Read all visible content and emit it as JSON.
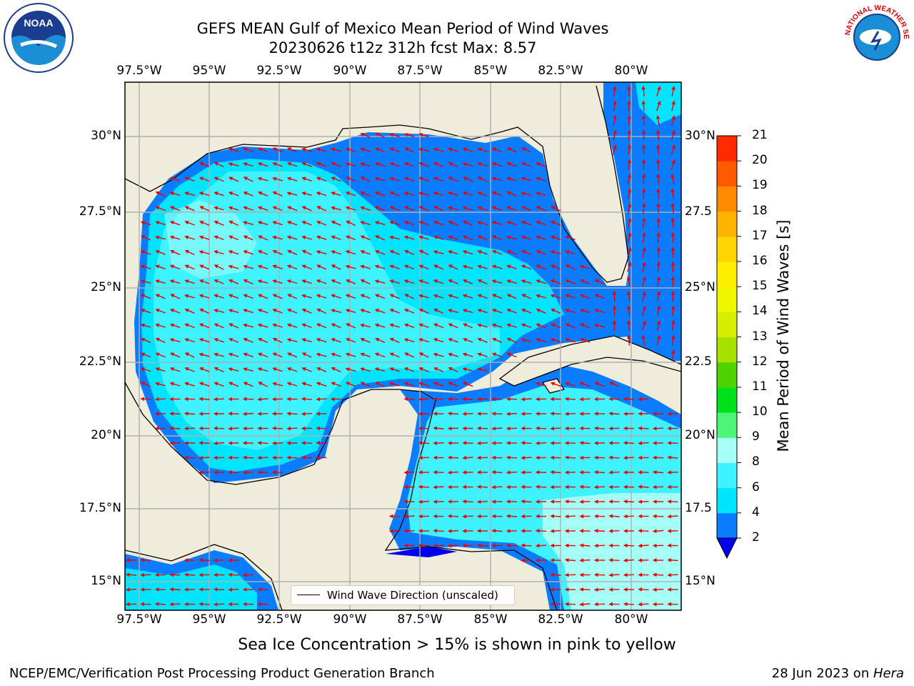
{
  "title": {
    "line1": "GEFS MEAN Gulf of Mexico Mean Period of Wind Waves",
    "line2": "20230626 t12z 312h fcst   Max: 8.57"
  },
  "logos": {
    "left_text": "NOAA",
    "right_text": "NATIONAL WEATHER SERVICE"
  },
  "axes": {
    "lon_ticks": [
      "97.5°W",
      "95°W",
      "92.5°W",
      "90°W",
      "87.5°W",
      "85°W",
      "82.5°W",
      "80°W"
    ],
    "lat_ticks": [
      "30°N",
      "27.5°N",
      "25°N",
      "22.5°N",
      "20°N",
      "17.5°N",
      "15°N"
    ],
    "lat_ticks_right": [
      "30°N",
      "27.5",
      "25°N",
      "22.5",
      "20°N",
      "17.5",
      "15°N"
    ]
  },
  "colorbar": {
    "label": "Mean Period of Wind Waves [s]",
    "ticks": [
      "2",
      "4",
      "6",
      "8",
      "9",
      "10",
      "11",
      "12",
      "13",
      "14",
      "15",
      "16",
      "17",
      "18",
      "19",
      "20",
      "21"
    ],
    "colors": [
      "#0a7cff",
      "#00e5ff",
      "#3ff2ff",
      "#a6fff7",
      "#4cf57a",
      "#00e11c",
      "#4fd300",
      "#a8e000",
      "#d6ef00",
      "#f0f500",
      "#ffee00",
      "#ffd500",
      "#ffb300",
      "#ff8a00",
      "#ff5a00",
      "#ff2a00"
    ],
    "extend_color": "#0000ee"
  },
  "legend": {
    "label": "Wind Wave Direction (unscaled)"
  },
  "caption": "Sea Ice Concentration > 15% is shown in pink to yellow",
  "footer": {
    "left": "NCEP/EMC/Verification Post Processing Product Generation Branch",
    "right_prefix": "28 Jun 2023 on ",
    "right_host": "Hera"
  },
  "map_colors": {
    "land": "#efecdc",
    "deep": "#0a7cff",
    "mid": "#00e5ff",
    "light": "#3ff2ff",
    "pale": "#a6fff7",
    "edge": "#0000ee",
    "arrow": "#ee0000"
  }
}
